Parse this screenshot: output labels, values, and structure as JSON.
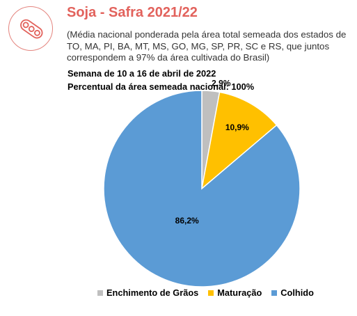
{
  "header": {
    "title": "Soja - Safra 2021/22",
    "subtitle": "(Média nacional ponderada pela área total semeada dos estados de TO, MA, PI, BA, MT, MS, GO, MG, SP, PR, SC e RS, que juntos correspondem a 97% da área cultivada do Brasil)",
    "logo_icon": "soybean-pod-icon"
  },
  "chart_data": {
    "type": "pie",
    "title": "Semana de 10 a 16 de abril de 2022",
    "subtitle": "Percentual da área semeada nacional: 100%",
    "slices": [
      {
        "name": "Enchimento de Grãos",
        "value": 2.9,
        "label": "2,9%",
        "color": "#bfbfbf"
      },
      {
        "name": "Maturação",
        "value": 10.9,
        "label": "10,9%",
        "color": "#ffc000"
      },
      {
        "name": "Colhido",
        "value": 86.2,
        "label": "86,2%",
        "color": "#5b9bd5"
      }
    ],
    "legend_position": "bottom"
  }
}
